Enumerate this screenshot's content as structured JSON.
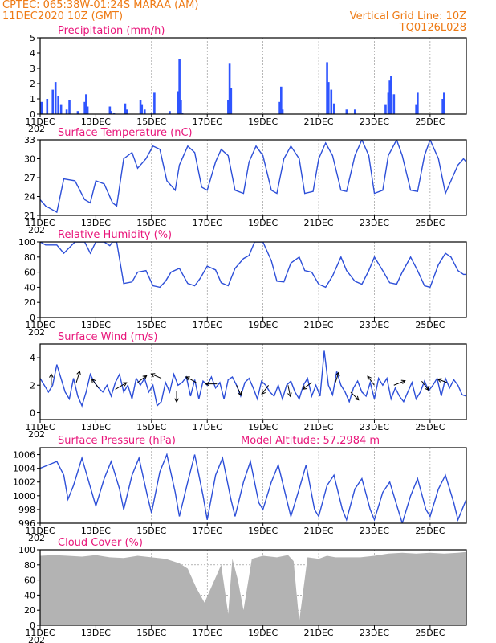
{
  "header": {
    "station": "CPTEC:   065:38W-01:24S   MARAA (AM)",
    "run": "11DEC2020 10Z (GMT)",
    "grid_note": "Vertical Grid Line: 10Z",
    "code": "TQ0126L028"
  },
  "colors": {
    "line": "#2d4fd8",
    "bar": "#2f55ff",
    "cloud": "#b3b3b3",
    "title": "#e8157a",
    "header": "#ee7a14"
  },
  "x_axis": {
    "unit": "days from 11DEC 00Z",
    "range": [
      0,
      15.3
    ],
    "tick_positions": [
      0,
      2,
      4,
      6,
      8,
      10,
      12,
      14
    ],
    "tick_labels": [
      "11DEC",
      "13DEC",
      "15DEC",
      "17DEC",
      "19DEC",
      "21DEC",
      "23DEC",
      "25DEC"
    ],
    "year_fragment": "202"
  },
  "chart_data": [
    {
      "id": "precip",
      "type": "bar",
      "title": "Precipitation (mm/h)",
      "ylim": [
        0,
        5
      ],
      "yticks": [
        0,
        1,
        2,
        3,
        4,
        5
      ],
      "x": [
        0.05,
        0.25,
        0.45,
        0.55,
        0.65,
        0.75,
        0.95,
        1.05,
        1.35,
        1.6,
        1.65,
        1.7,
        2.5,
        2.55,
        2.65,
        3.05,
        3.1,
        3.6,
        3.65,
        3.75,
        4.0,
        4.1,
        4.65,
        4.95,
        5.0,
        5.05,
        5.1,
        6.75,
        6.8,
        6.85,
        8.6,
        8.65,
        8.7,
        10.3,
        10.35,
        10.45,
        10.55,
        11.0,
        11.3,
        12.4,
        12.5,
        12.55,
        12.6,
        12.7,
        13.5,
        13.55,
        14.45,
        14.5
      ],
      "values": [
        0.8,
        1.0,
        1.6,
        2.1,
        1.2,
        0.6,
        0.3,
        0.9,
        0.2,
        0.8,
        1.3,
        0.5,
        0.5,
        0.2,
        0.1,
        0.7,
        0.3,
        0.9,
        0.6,
        0.3,
        0.1,
        1.4,
        0.2,
        1.5,
        3.6,
        0.9,
        0.1,
        0.9,
        3.3,
        1.7,
        0.8,
        1.8,
        0.3,
        3.4,
        2.1,
        1.6,
        0.7,
        0.3,
        0.3,
        0.6,
        1.4,
        2.2,
        2.5,
        1.3,
        0.6,
        1.4,
        1.0,
        1.4
      ]
    },
    {
      "id": "temp",
      "type": "line",
      "title": "Surface Temperature (nC)",
      "ylim": [
        21,
        33
      ],
      "yticks": [
        21,
        24,
        27,
        30,
        33
      ],
      "x": [
        0,
        0.2,
        0.4,
        0.6,
        0.85,
        1.25,
        1.6,
        1.8,
        2.0,
        2.3,
        2.6,
        2.75,
        3.0,
        3.3,
        3.5,
        3.8,
        4.05,
        4.3,
        4.55,
        4.85,
        5.0,
        5.3,
        5.55,
        5.8,
        6.0,
        6.3,
        6.5,
        6.75,
        7.0,
        7.3,
        7.5,
        7.75,
        8.0,
        8.3,
        8.5,
        8.75,
        9.0,
        9.3,
        9.5,
        9.8,
        10.0,
        10.25,
        10.5,
        10.8,
        11.0,
        11.3,
        11.55,
        11.8,
        12.0,
        12.3,
        12.5,
        12.8,
        13.0,
        13.3,
        13.55,
        13.8,
        14.0,
        14.3,
        14.55,
        14.75,
        15.0,
        15.2,
        15.3
      ],
      "values": [
        23.5,
        22.5,
        22,
        21.5,
        26.8,
        26.5,
        23.5,
        23,
        26.5,
        26,
        23,
        22.5,
        30,
        31,
        28.5,
        30,
        32,
        31.5,
        26.5,
        25,
        29,
        32,
        31,
        25.5,
        25,
        29.5,
        31.5,
        30.5,
        25,
        24.5,
        29.5,
        32,
        30.5,
        25,
        24.5,
        30,
        32,
        30,
        24.5,
        24.8,
        30,
        32.5,
        30.5,
        25,
        24.8,
        30.5,
        33,
        30.5,
        24.5,
        25,
        30.5,
        33,
        30.5,
        25,
        24.8,
        30.5,
        33,
        30,
        24.5,
        26.5,
        29,
        30,
        29.5
      ]
    },
    {
      "id": "rh",
      "type": "line",
      "title": "Relative Humidity (%)",
      "ylim": [
        0,
        100
      ],
      "yticks": [
        0,
        20,
        40,
        60,
        80,
        100
      ],
      "x": [
        0,
        0.2,
        0.4,
        0.6,
        0.85,
        1.25,
        1.6,
        1.8,
        2.0,
        2.3,
        2.5,
        2.6,
        2.75,
        3.0,
        3.3,
        3.5,
        3.8,
        4.05,
        4.3,
        4.5,
        4.7,
        5.0,
        5.3,
        5.55,
        5.75,
        6.0,
        6.3,
        6.5,
        6.75,
        7.0,
        7.3,
        7.5,
        7.7,
        8.0,
        8.3,
        8.5,
        8.75,
        9.0,
        9.3,
        9.5,
        9.75,
        10.0,
        10.25,
        10.5,
        10.8,
        11.0,
        11.3,
        11.55,
        11.8,
        12.0,
        12.3,
        12.55,
        12.8,
        13.0,
        13.3,
        13.55,
        13.8,
        14.0,
        14.3,
        14.55,
        14.75,
        15.0,
        15.2,
        15.3
      ],
      "values": [
        100,
        96,
        96,
        96,
        85,
        100,
        100,
        85,
        100,
        100,
        95,
        100,
        100,
        45,
        47,
        60,
        62,
        42,
        40,
        48,
        60,
        65,
        45,
        42,
        52,
        68,
        63,
        46,
        42,
        65,
        78,
        82,
        100,
        100,
        75,
        48,
        47,
        72,
        80,
        62,
        60,
        44,
        40,
        55,
        80,
        62,
        48,
        44,
        62,
        80,
        62,
        46,
        44,
        60,
        80,
        62,
        42,
        40,
        70,
        85,
        80,
        62,
        57,
        57
      ]
    },
    {
      "id": "wind",
      "type": "line",
      "title": "Surface Wind (m/s)",
      "ylim": [
        -0.5,
        5
      ],
      "yticks": [
        0,
        2,
        4
      ],
      "x": [
        0,
        0.15,
        0.3,
        0.45,
        0.6,
        0.75,
        0.9,
        1.05,
        1.2,
        1.35,
        1.5,
        1.65,
        1.8,
        1.95,
        2.1,
        2.25,
        2.4,
        2.55,
        2.7,
        2.85,
        3.0,
        3.15,
        3.3,
        3.45,
        3.6,
        3.75,
        3.9,
        4.05,
        4.2,
        4.35,
        4.5,
        4.65,
        4.8,
        4.95,
        5.1,
        5.25,
        5.4,
        5.55,
        5.7,
        5.85,
        6.0,
        6.15,
        6.3,
        6.45,
        6.6,
        6.75,
        6.9,
        7.05,
        7.2,
        7.35,
        7.5,
        7.65,
        7.8,
        7.95,
        8.1,
        8.25,
        8.4,
        8.55,
        8.7,
        8.85,
        9.0,
        9.15,
        9.3,
        9.45,
        9.6,
        9.75,
        9.9,
        10.05,
        10.2,
        10.35,
        10.5,
        10.65,
        10.8,
        10.95,
        11.1,
        11.25,
        11.4,
        11.55,
        11.7,
        11.85,
        12.0,
        12.15,
        12.3,
        12.45,
        12.6,
        12.75,
        12.9,
        13.05,
        13.2,
        13.35,
        13.5,
        13.65,
        13.8,
        13.95,
        14.1,
        14.25,
        14.4,
        14.55,
        14.7,
        14.85,
        15.0,
        15.15,
        15.3
      ],
      "values": [
        2.5,
        2.0,
        1.5,
        2.0,
        3.5,
        2.5,
        1.5,
        1.0,
        2.5,
        1.2,
        0.5,
        1.5,
        2.8,
        2.2,
        1.8,
        1.5,
        2.0,
        1.2,
        2.2,
        2.8,
        1.5,
        2.0,
        1.0,
        2.5,
        2.0,
        2.5,
        1.5,
        2.0,
        0.5,
        0.8,
        2.2,
        1.5,
        2.8,
        2.0,
        2.2,
        2.6,
        1.2,
        2.4,
        1.0,
        2.3,
        2.0,
        2.6,
        1.8,
        2.2,
        1.0,
        2.4,
        2.6,
        2.0,
        1.2,
        2.2,
        2.5,
        1.8,
        1.0,
        2.3,
        2.0,
        1.5,
        1.2,
        2.0,
        1.0,
        2.0,
        2.3,
        1.5,
        1.0,
        2.0,
        2.5,
        1.2,
        2.0,
        1.2,
        4.5,
        2.0,
        1.3,
        3.0,
        2.0,
        1.5,
        0.8,
        1.8,
        2.3,
        1.5,
        1.2,
        2.2,
        1.0,
        2.5,
        2.0,
        2.5,
        1.0,
        1.8,
        1.2,
        0.8,
        1.5,
        2.2,
        1.0,
        1.5,
        2.3,
        1.6,
        2.0,
        2.5,
        1.2,
        2.5,
        1.8,
        2.4,
        2.0,
        1.3,
        1.2
      ],
      "arrows": [
        {
          "x": 0.4,
          "y": 2.0,
          "u": 0,
          "v": 1
        },
        {
          "x": 1.3,
          "y": 2.2,
          "u": 0.3,
          "v": 1
        },
        {
          "x": 2.1,
          "y": 1.8,
          "u": -0.6,
          "v": 0.8
        },
        {
          "x": 2.7,
          "y": 1.7,
          "u": 1,
          "v": 0.6
        },
        {
          "x": 3.5,
          "y": 2.2,
          "u": 0.8,
          "v": 0.6
        },
        {
          "x": 4.35,
          "y": 2.5,
          "u": -0.9,
          "v": 0.4
        },
        {
          "x": 4.9,
          "y": 1.6,
          "u": 0,
          "v": -1
        },
        {
          "x": 5.6,
          "y": 2.2,
          "u": -0.9,
          "v": 0.5
        },
        {
          "x": 6.35,
          "y": 2.1,
          "u": -1,
          "v": 0
        },
        {
          "x": 7.05,
          "y": 2.0,
          "u": 0.4,
          "v": -0.9
        },
        {
          "x": 8.2,
          "y": 2.0,
          "u": -0.6,
          "v": -0.8
        },
        {
          "x": 8.9,
          "y": 2.0,
          "u": 0.2,
          "v": -1
        },
        {
          "x": 9.75,
          "y": 2.2,
          "u": -0.8,
          "v": -0.6
        },
        {
          "x": 10.6,
          "y": 2.2,
          "u": 0.3,
          "v": 0.9
        },
        {
          "x": 11.15,
          "y": 1.5,
          "u": 0.7,
          "v": -0.7
        },
        {
          "x": 12.0,
          "y": 2.0,
          "u": -0.6,
          "v": 0.8
        },
        {
          "x": 12.7,
          "y": 2.0,
          "u": 1,
          "v": 0.4
        },
        {
          "x": 13.7,
          "y": 2.3,
          "u": 0.6,
          "v": -0.8
        },
        {
          "x": 14.6,
          "y": 2.2,
          "u": -0.8,
          "v": 0.3
        }
      ]
    },
    {
      "id": "pressure",
      "type": "line",
      "title": "Surface Pressure (hPa)",
      "annotation": "Model Altitude: 57.2984 m",
      "ylim": [
        996,
        1007
      ],
      "yticks": [
        996,
        998,
        1000,
        1002,
        1004,
        1006
      ],
      "x": [
        0,
        0.3,
        0.6,
        0.85,
        1.0,
        1.2,
        1.5,
        1.75,
        2.0,
        2.3,
        2.55,
        2.85,
        3.0,
        3.3,
        3.55,
        3.85,
        4.0,
        4.3,
        4.55,
        4.85,
        5.0,
        5.3,
        5.55,
        5.85,
        6.0,
        6.3,
        6.55,
        6.85,
        7.0,
        7.3,
        7.55,
        7.85,
        8.0,
        8.3,
        8.55,
        8.85,
        9.0,
        9.3,
        9.55,
        9.85,
        10.0,
        10.3,
        10.55,
        10.85,
        11.0,
        11.3,
        11.55,
        11.85,
        12.0,
        12.3,
        12.55,
        12.85,
        13.0,
        13.3,
        13.55,
        13.85,
        14.0,
        14.3,
        14.55,
        14.85,
        15.0,
        15.3
      ],
      "values": [
        1004,
        1004.5,
        1005,
        1003,
        999.5,
        1001.5,
        1005.5,
        1002,
        998.5,
        1002.5,
        1005,
        1001,
        998,
        1003,
        1005.5,
        1000,
        997.5,
        1003.5,
        1006,
        1000.5,
        997,
        1002,
        1006,
        1000,
        996.5,
        1003,
        1005.5,
        999.5,
        997,
        1002,
        1005,
        999,
        998,
        1002,
        1004.5,
        999.5,
        997,
        1001,
        1004.5,
        998,
        997,
        1001.5,
        1003,
        998,
        996.5,
        1001,
        1002.5,
        998,
        996.5,
        1000.5,
        1002,
        998,
        996,
        1000,
        1002.5,
        998,
        997,
        1001,
        1003,
        999,
        996.5,
        999.5
      ]
    },
    {
      "id": "cloud",
      "type": "area",
      "title": "Cloud Cover (%)",
      "ylim": [
        0,
        100
      ],
      "yticks": [
        0,
        20,
        40,
        60,
        80,
        100
      ],
      "x": [
        0,
        0.5,
        1.0,
        1.5,
        2.0,
        2.5,
        3.0,
        3.5,
        4.0,
        4.5,
        5.0,
        5.3,
        5.6,
        5.9,
        6.2,
        6.5,
        6.75,
        6.9,
        7.1,
        7.3,
        7.6,
        8.0,
        8.5,
        8.9,
        9.1,
        9.3,
        9.6,
        10.0,
        10.3,
        10.6,
        11.0,
        11.5,
        12.0,
        12.5,
        13.0,
        13.5,
        14.0,
        14.5,
        15.0,
        15.3
      ],
      "values": [
        92,
        93,
        92,
        91,
        93,
        90,
        89,
        92,
        90,
        88,
        82,
        75,
        50,
        30,
        55,
        80,
        15,
        88,
        60,
        20,
        88,
        92,
        90,
        93,
        85,
        5,
        90,
        88,
        92,
        90,
        90,
        90,
        92,
        95,
        96,
        95,
        96,
        95,
        96,
        97
      ],
      "grid": true
    }
  ]
}
